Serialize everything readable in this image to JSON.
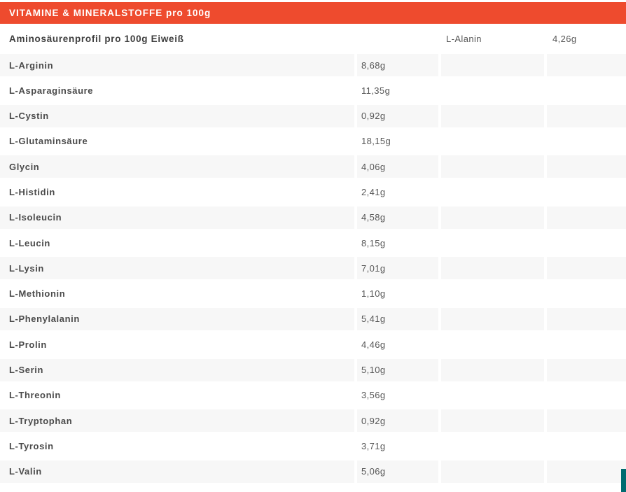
{
  "header": {
    "title": "VITAMINE & MINERALSTOFFE pro 100g"
  },
  "subheader": {
    "label": "Aminosäurenprofil pro 100g Eiweiß",
    "first_item_name": "L-Alanin",
    "first_item_value": "4,26g"
  },
  "table": {
    "rows": [
      {
        "name": "L-Arginin",
        "value": "8,68g"
      },
      {
        "name": "L-Asparaginsäure",
        "value": "11,35g"
      },
      {
        "name": "L-Cystin",
        "value": "0,92g"
      },
      {
        "name": "L-Glutaminsäure",
        "value": "18,15g"
      },
      {
        "name": "Glycin",
        "value": "4,06g"
      },
      {
        "name": "L-Histidin",
        "value": "2,41g"
      },
      {
        "name": "L-Isoleucin",
        "value": "4,58g"
      },
      {
        "name": "L-Leucin",
        "value": "8,15g"
      },
      {
        "name": "L-Lysin",
        "value": "7,01g"
      },
      {
        "name": "L-Methionin",
        "value": "1,10g"
      },
      {
        "name": "L-Phenylalanin",
        "value": "5,41g"
      },
      {
        "name": "L-Prolin",
        "value": "4,46g"
      },
      {
        "name": "L-Serin",
        "value": "5,10g"
      },
      {
        "name": "L-Threonin",
        "value": "3,56g"
      },
      {
        "name": "L-Tryptophan",
        "value": "0,92g"
      },
      {
        "name": "L-Tyrosin",
        "value": "3,71g"
      },
      {
        "name": "L-Valin",
        "value": "5,06g"
      }
    ]
  },
  "colors": {
    "accent_orange": "#ee4b2e",
    "row_stripe": "#f7f7f7",
    "teal_accent": "#006b70"
  }
}
